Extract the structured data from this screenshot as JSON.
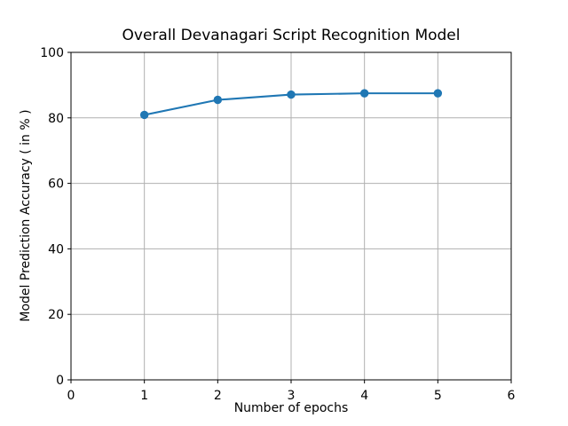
{
  "chart_data": {
    "type": "line",
    "title": "Overall Devanagari Script Recognition Model",
    "xlabel": "Number of epochs",
    "ylabel": "Model Prediction Accuracy ( in % )",
    "x": [
      1,
      2,
      3,
      4,
      5
    ],
    "values": [
      80.9,
      85.5,
      87.1,
      87.5,
      87.5
    ],
    "xlim": [
      0,
      6
    ],
    "ylim": [
      0,
      100
    ],
    "xticks": [
      0,
      1,
      2,
      3,
      4,
      5,
      6
    ],
    "yticks": [
      0,
      20,
      40,
      60,
      80,
      100
    ],
    "grid": true,
    "legend_position": "none",
    "line_color": "#1f77b4",
    "marker": "circle",
    "grid_color": "#b0b0b0",
    "axis_color": "#000000",
    "background_color": "#ffffff"
  }
}
